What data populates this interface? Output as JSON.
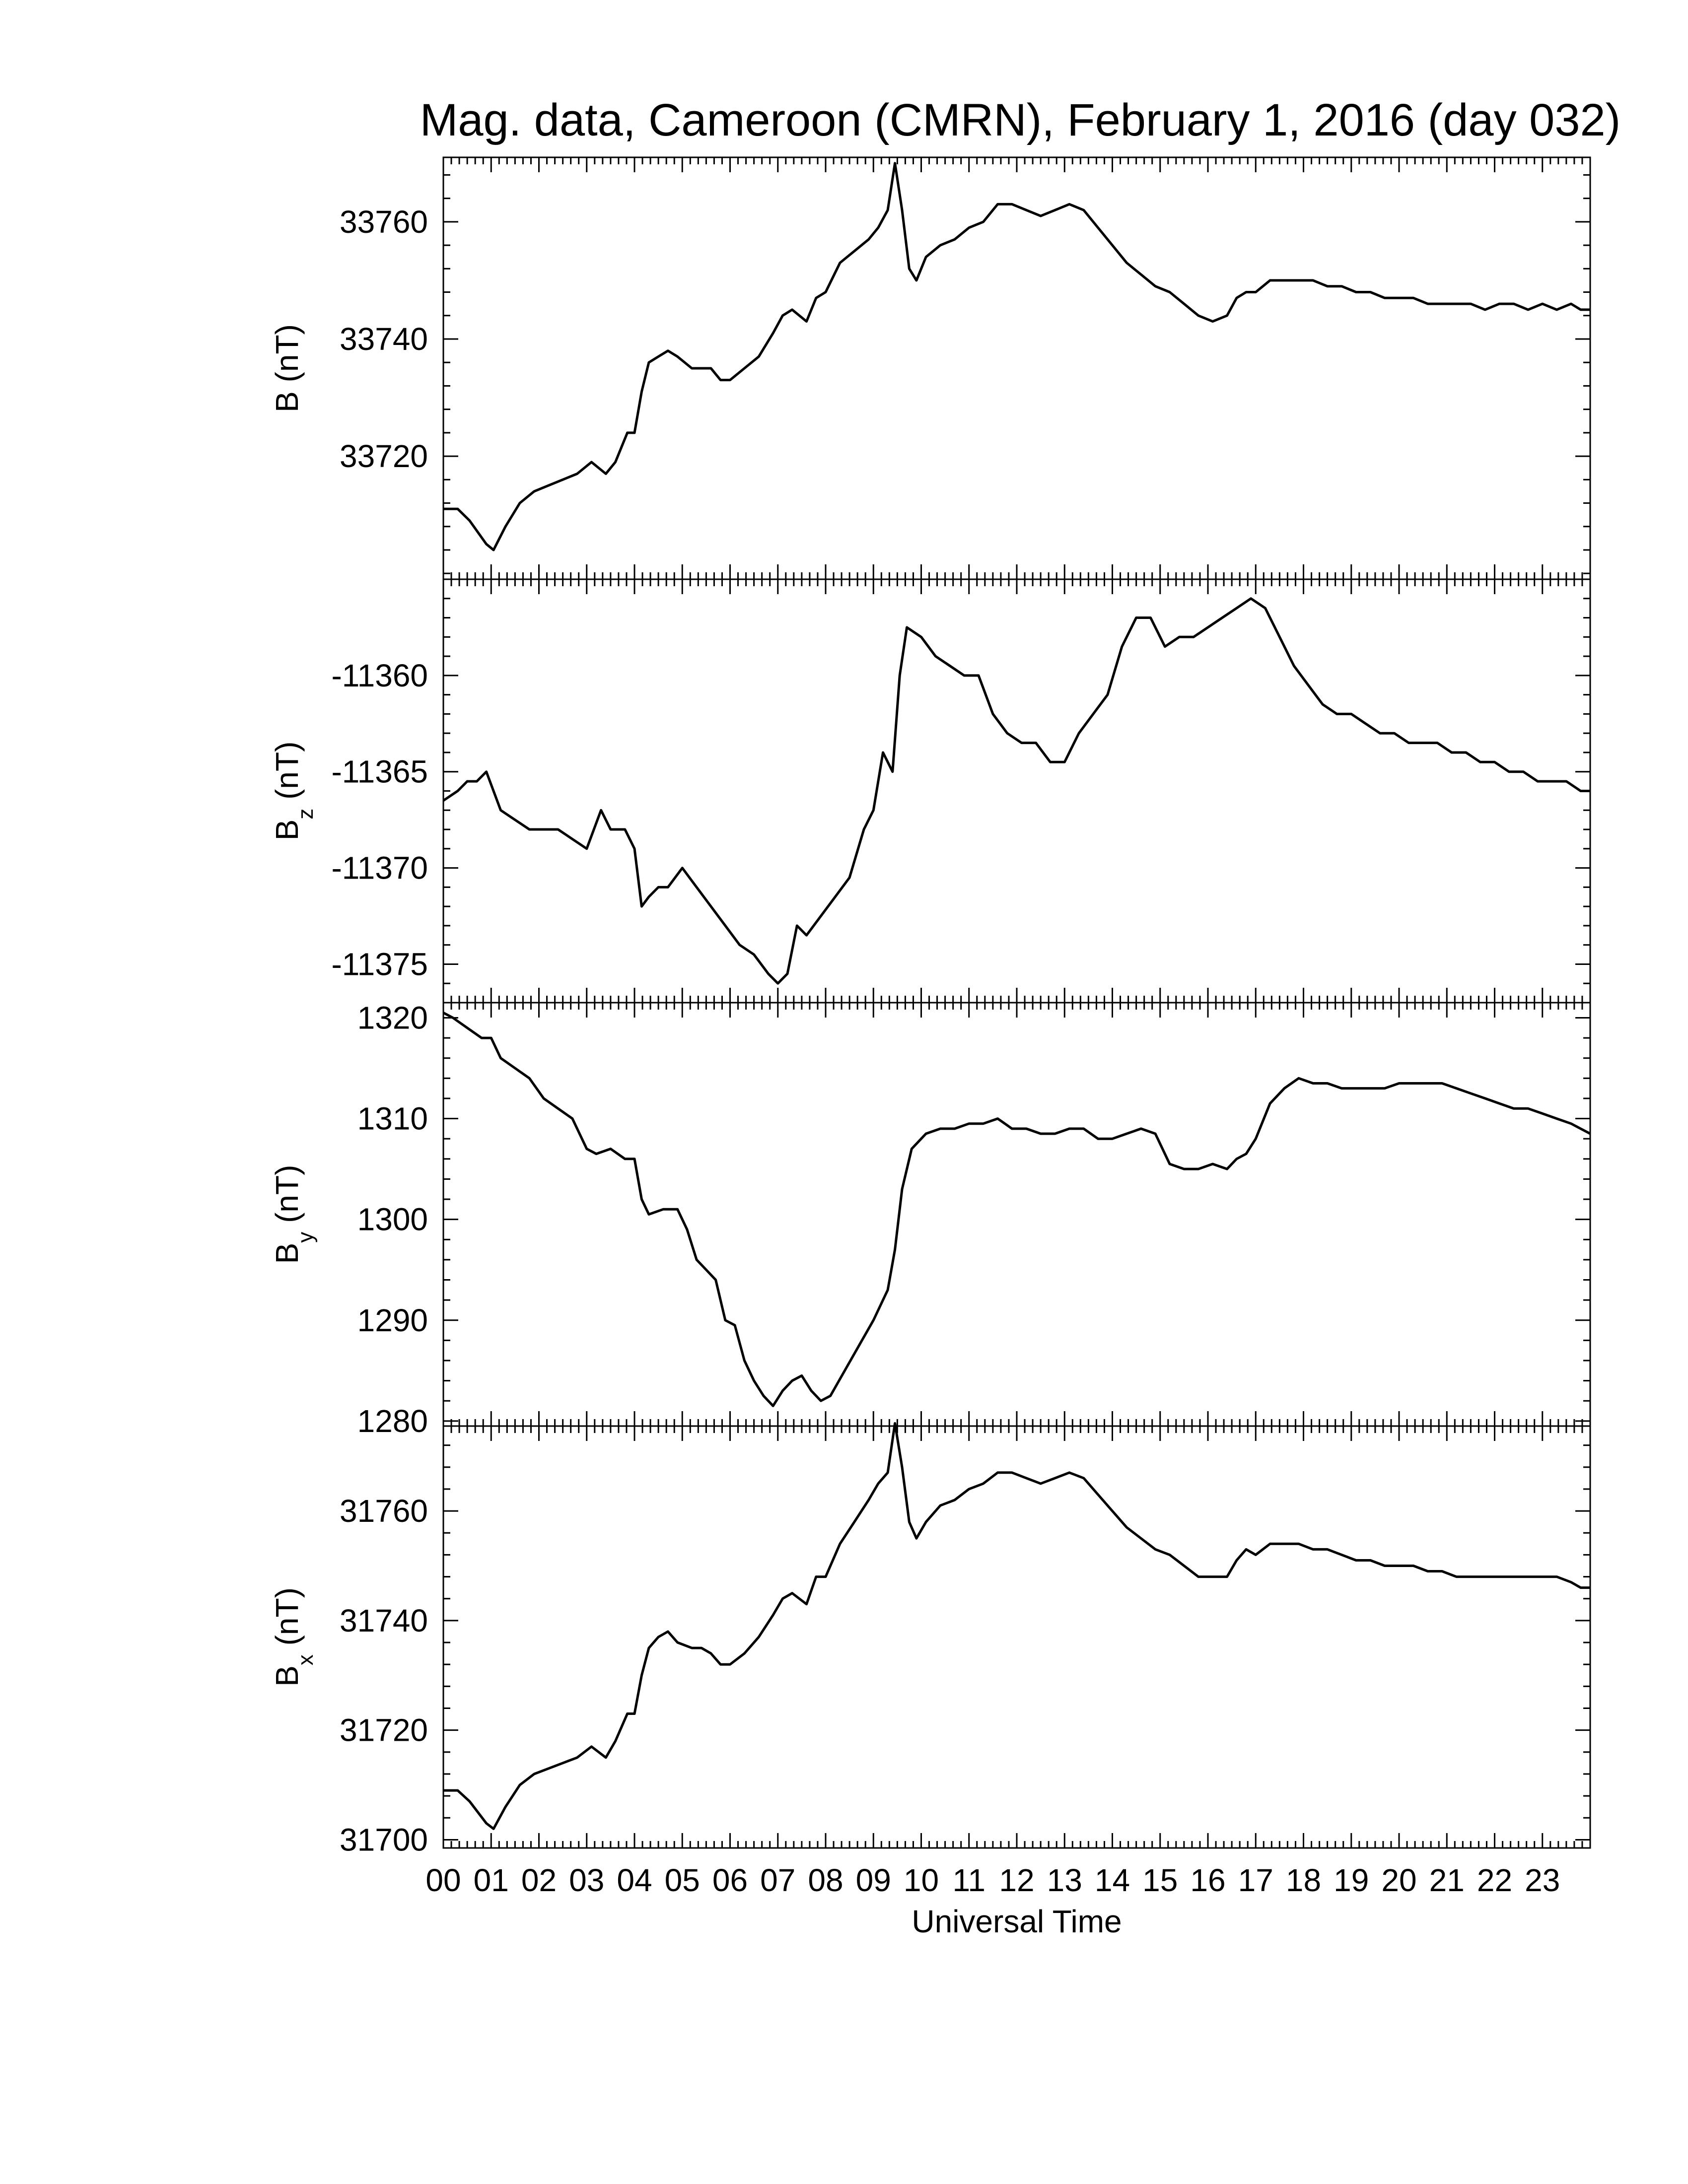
{
  "chart_data": {
    "type": "line",
    "title": "Mag. data, Cameroon (CMRN), February 1, 2016 (day 032)",
    "xlabel": "Universal Time",
    "x_tick_labels": [
      "00",
      "01",
      "02",
      "03",
      "04",
      "05",
      "06",
      "07",
      "08",
      "09",
      "10",
      "11",
      "12",
      "13",
      "14",
      "15",
      "16",
      "17",
      "18",
      "19",
      "20",
      "21",
      "22",
      "23"
    ],
    "xlim": [
      0,
      24
    ],
    "panels": [
      {
        "ylabel_main": "B",
        "ylabel_sub": "",
        "ylabel_unit": "(nT)",
        "ylim": [
          33699,
          33771
        ],
        "yticks": [
          33720,
          33740,
          33760
        ],
        "series": {
          "x": [
            0,
            0.3,
            0.55,
            0.9,
            1.05,
            1.3,
            1.6,
            1.9,
            2.2,
            2.5,
            2.8,
            3.1,
            3.4,
            3.6,
            3.85,
            4.0,
            4.15,
            4.3,
            4.5,
            4.7,
            4.9,
            5.2,
            5.4,
            5.6,
            5.8,
            6.0,
            6.3,
            6.6,
            6.9,
            7.1,
            7.3,
            7.6,
            7.8,
            8.0,
            8.3,
            8.6,
            8.9,
            9.1,
            9.3,
            9.45,
            9.6,
            9.75,
            9.9,
            10.1,
            10.4,
            10.7,
            11.0,
            11.3,
            11.6,
            11.9,
            12.2,
            12.5,
            12.8,
            13.1,
            13.4,
            13.7,
            14.0,
            14.3,
            14.6,
            14.9,
            15.2,
            15.5,
            15.8,
            16.1,
            16.4,
            16.6,
            16.8,
            17.0,
            17.3,
            17.6,
            17.9,
            18.2,
            18.5,
            18.8,
            19.1,
            19.4,
            19.7,
            20.0,
            20.3,
            20.6,
            20.9,
            21.2,
            21.5,
            21.8,
            22.1,
            22.4,
            22.7,
            23.0,
            23.3,
            23.6,
            23.8,
            24.0
          ],
          "y": [
            33711,
            33711,
            33709,
            33705,
            33704,
            33708,
            33712,
            33714,
            33715,
            33716,
            33717,
            33719,
            33717,
            33719,
            33724,
            33724,
            33731,
            33736,
            33737,
            33738,
            33737,
            33735,
            33735,
            33735,
            33733,
            33733,
            33735,
            33737,
            33741,
            33744,
            33745,
            33743,
            33747,
            33748,
            33753,
            33755,
            33757,
            33759,
            33762,
            33770,
            33762,
            33752,
            33750,
            33754,
            33756,
            33757,
            33759,
            33760,
            33763,
            33763,
            33762,
            33761,
            33762,
            33763,
            33762,
            33759,
            33756,
            33753,
            33751,
            33749,
            33748,
            33746,
            33744,
            33743,
            33744,
            33747,
            33748,
            33748,
            33750,
            33750,
            33750,
            33750,
            33749,
            33749,
            33748,
            33748,
            33747,
            33747,
            33747,
            33746,
            33746,
            33746,
            33746,
            33745,
            33746,
            33746,
            33745,
            33746,
            33745,
            33746,
            33745,
            33745
          ]
        }
      },
      {
        "ylabel_main": "B",
        "ylabel_sub": "z",
        "ylabel_unit": "(nT)",
        "ylim": [
          -11377.0,
          -11355.0
        ],
        "yticks": [
          -11375,
          -11370,
          -11365,
          -11360
        ],
        "series": {
          "x": [
            0,
            0.3,
            0.5,
            0.7,
            0.9,
            1.2,
            1.5,
            1.8,
            2.1,
            2.4,
            2.7,
            3.0,
            3.3,
            3.5,
            3.8,
            4.0,
            4.15,
            4.3,
            4.5,
            4.7,
            5.0,
            5.3,
            5.6,
            5.9,
            6.2,
            6.5,
            6.8,
            7.0,
            7.2,
            7.4,
            7.6,
            7.9,
            8.2,
            8.5,
            8.8,
            9.0,
            9.2,
            9.4,
            9.55,
            9.7,
            10.0,
            10.3,
            10.6,
            10.9,
            11.2,
            11.5,
            11.8,
            12.1,
            12.4,
            12.7,
            13.0,
            13.3,
            13.6,
            13.9,
            14.2,
            14.5,
            14.8,
            15.1,
            15.4,
            15.7,
            16.0,
            16.3,
            16.6,
            16.9,
            17.2,
            17.5,
            17.8,
            18.1,
            18.4,
            18.7,
            19.0,
            19.3,
            19.6,
            19.9,
            20.2,
            20.5,
            20.8,
            21.1,
            21.4,
            21.7,
            22.0,
            22.3,
            22.6,
            22.9,
            23.2,
            23.5,
            23.8,
            24.0
          ],
          "y": [
            -11366.5,
            -11366.0,
            -11365.5,
            -11365.5,
            -11365.0,
            -11367.0,
            -11367.5,
            -11368.0,
            -11368.0,
            -11368.0,
            -11368.5,
            -11369.0,
            -11367.0,
            -11368.0,
            -11368.0,
            -11369.0,
            -11372.0,
            -11371.5,
            -11371.0,
            -11371.0,
            -11370.0,
            -11371.0,
            -11372.0,
            -11373.0,
            -11374.0,
            -11374.5,
            -11375.5,
            -11376.0,
            -11375.5,
            -11373.0,
            -11373.5,
            -11372.5,
            -11371.5,
            -11370.5,
            -11368.0,
            -11367.0,
            -11364.0,
            -11365.0,
            -11360.0,
            -11357.5,
            -11358.0,
            -11359.0,
            -11359.5,
            -11360.0,
            -11360.0,
            -11362.0,
            -11363.0,
            -11363.5,
            -11363.5,
            -11364.5,
            -11364.5,
            -11363.0,
            -11362.0,
            -11361.0,
            -11358.5,
            -11357.0,
            -11357.0,
            -11358.5,
            -11358.0,
            -11358.0,
            -11357.5,
            -11357.0,
            -11356.5,
            -11356.0,
            -11356.5,
            -11358.0,
            -11359.5,
            -11360.5,
            -11361.5,
            -11362.0,
            -11362.0,
            -11362.5,
            -11363.0,
            -11363.0,
            -11363.5,
            -11363.5,
            -11363.5,
            -11364.0,
            -11364.0,
            -11364.5,
            -11364.5,
            -11365.0,
            -11365.0,
            -11365.5,
            -11365.5,
            -11365.5,
            -11366.0,
            -11366.0
          ]
        }
      },
      {
        "ylabel_main": "B",
        "ylabel_sub": "y",
        "ylabel_unit": "(nT)",
        "ylim": [
          1279.5,
          1321.5
        ],
        "yticks": [
          1280,
          1290,
          1300,
          1310,
          1320
        ],
        "series": {
          "x": [
            0,
            0.2,
            0.5,
            0.8,
            1.0,
            1.2,
            1.5,
            1.8,
            2.1,
            2.4,
            2.7,
            3.0,
            3.2,
            3.5,
            3.8,
            4.0,
            4.15,
            4.3,
            4.6,
            4.9,
            5.1,
            5.3,
            5.5,
            5.7,
            5.9,
            6.1,
            6.3,
            6.5,
            6.7,
            6.9,
            7.1,
            7.3,
            7.5,
            7.7,
            7.9,
            8.1,
            8.4,
            8.7,
            9.0,
            9.3,
            9.45,
            9.6,
            9.8,
            10.1,
            10.4,
            10.7,
            11.0,
            11.3,
            11.6,
            11.9,
            12.2,
            12.5,
            12.8,
            13.1,
            13.4,
            13.7,
            14.0,
            14.3,
            14.6,
            14.9,
            15.2,
            15.5,
            15.8,
            16.1,
            16.4,
            16.6,
            16.8,
            17.0,
            17.3,
            17.6,
            17.9,
            18.2,
            18.5,
            18.8,
            19.1,
            19.4,
            19.7,
            20.0,
            20.3,
            20.6,
            20.9,
            21.2,
            21.5,
            21.8,
            22.1,
            22.4,
            22.7,
            23.0,
            23.3,
            23.6,
            23.8,
            24.0
          ],
          "y": [
            1320.5,
            1320.0,
            1319.0,
            1318.0,
            1318.0,
            1316.0,
            1315.0,
            1314.0,
            1312.0,
            1311.0,
            1310.0,
            1307.0,
            1306.5,
            1307.0,
            1306.0,
            1306.0,
            1302.0,
            1300.5,
            1301.0,
            1301.0,
            1299.0,
            1296.0,
            1295.0,
            1294.0,
            1290.0,
            1289.5,
            1286.0,
            1284.0,
            1282.5,
            1281.5,
            1283.0,
            1284.0,
            1284.5,
            1283.0,
            1282.0,
            1282.5,
            1285.0,
            1287.5,
            1290.0,
            1293.0,
            1297.0,
            1303.0,
            1307.0,
            1308.5,
            1309.0,
            1309.0,
            1309.5,
            1309.5,
            1310.0,
            1309.0,
            1309.0,
            1308.5,
            1308.5,
            1309.0,
            1309.0,
            1308.0,
            1308.0,
            1308.5,
            1309.0,
            1308.5,
            1305.5,
            1305.0,
            1305.0,
            1305.5,
            1305.0,
            1306.0,
            1306.5,
            1308.0,
            1311.5,
            1313.0,
            1314.0,
            1313.5,
            1313.5,
            1313.0,
            1313.0,
            1313.0,
            1313.0,
            1313.5,
            1313.5,
            1313.5,
            1313.5,
            1313.0,
            1312.5,
            1312.0,
            1311.5,
            1311.0,
            1311.0,
            1310.5,
            1310.0,
            1309.5,
            1309.0,
            1308.5
          ]
        }
      },
      {
        "ylabel_main": "B",
        "ylabel_sub": "x",
        "ylabel_unit": "(nT)",
        "ylim": [
          31698.5,
          31775.5
        ],
        "yticks": [
          31700,
          31720,
          31740,
          31760
        ],
        "series": {
          "x": [
            0,
            0.3,
            0.55,
            0.9,
            1.05,
            1.3,
            1.6,
            1.9,
            2.2,
            2.5,
            2.8,
            3.1,
            3.4,
            3.6,
            3.85,
            4.0,
            4.15,
            4.3,
            4.5,
            4.7,
            4.9,
            5.2,
            5.4,
            5.6,
            5.8,
            6.0,
            6.3,
            6.6,
            6.9,
            7.1,
            7.3,
            7.6,
            7.8,
            8.0,
            8.3,
            8.6,
            8.9,
            9.1,
            9.3,
            9.45,
            9.6,
            9.75,
            9.9,
            10.1,
            10.4,
            10.7,
            11.0,
            11.3,
            11.6,
            11.9,
            12.2,
            12.5,
            12.8,
            13.1,
            13.4,
            13.7,
            14.0,
            14.3,
            14.6,
            14.9,
            15.2,
            15.5,
            15.8,
            16.1,
            16.4,
            16.6,
            16.8,
            17.0,
            17.3,
            17.6,
            17.9,
            18.2,
            18.5,
            18.8,
            19.1,
            19.4,
            19.7,
            20.0,
            20.3,
            20.6,
            20.9,
            21.2,
            21.5,
            21.8,
            22.1,
            22.4,
            22.7,
            23.0,
            23.3,
            23.6,
            23.8,
            24.0
          ],
          "y": [
            31709,
            31709,
            31707,
            31703,
            31702,
            31706,
            31710,
            31712,
            31713,
            31714,
            31715,
            31717,
            31715,
            31718,
            31723,
            31723,
            31730,
            31735,
            31737,
            31738,
            31736,
            31735,
            31735,
            31734,
            31732,
            31732,
            31734,
            31737,
            31741,
            31744,
            31745,
            31743,
            31748,
            31748,
            31754,
            31758,
            31762,
            31765,
            31767,
            31776,
            31768,
            31758,
            31755,
            31758,
            31761,
            31762,
            31764,
            31765,
            31767,
            31767,
            31766,
            31765,
            31766,
            31767,
            31766,
            31763,
            31760,
            31757,
            31755,
            31753,
            31752,
            31750,
            31748,
            31748,
            31748,
            31751,
            31753,
            31752,
            31754,
            31754,
            31754,
            31753,
            31753,
            31752,
            31751,
            31751,
            31750,
            31750,
            31750,
            31749,
            31749,
            31748,
            31748,
            31748,
            31748,
            31748,
            31748,
            31748,
            31748,
            31747,
            31746,
            31746
          ]
        }
      }
    ]
  }
}
